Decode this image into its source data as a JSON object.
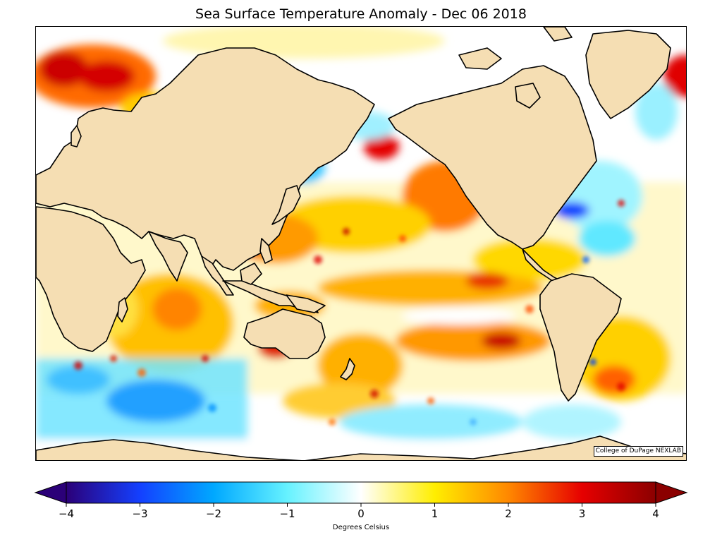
{
  "title": "Sea Surface Temperature Anomaly - Dec 06 2018",
  "credit": "College of DuPage NEXLAB",
  "colorbar": {
    "title": "Degrees Celsius",
    "ticks": [
      "−4",
      "−3",
      "−2",
      "−1",
      "0",
      "1",
      "2",
      "3",
      "4"
    ],
    "range": [
      -4,
      4
    ],
    "extend": "both",
    "colors": {
      "neg4": "#2b0078",
      "neg3": "#1440ff",
      "neg2": "#00a8ff",
      "neg1": "#66f2ff",
      "zero": "#ffffff",
      "pos1": "#ffee00",
      "pos2": "#ff8800",
      "pos3": "#e60000",
      "pos4": "#8b0000"
    }
  },
  "map": {
    "projection": "Mercator",
    "land_color": "#f5deb3",
    "ocean_background": "#ffffff"
  }
}
